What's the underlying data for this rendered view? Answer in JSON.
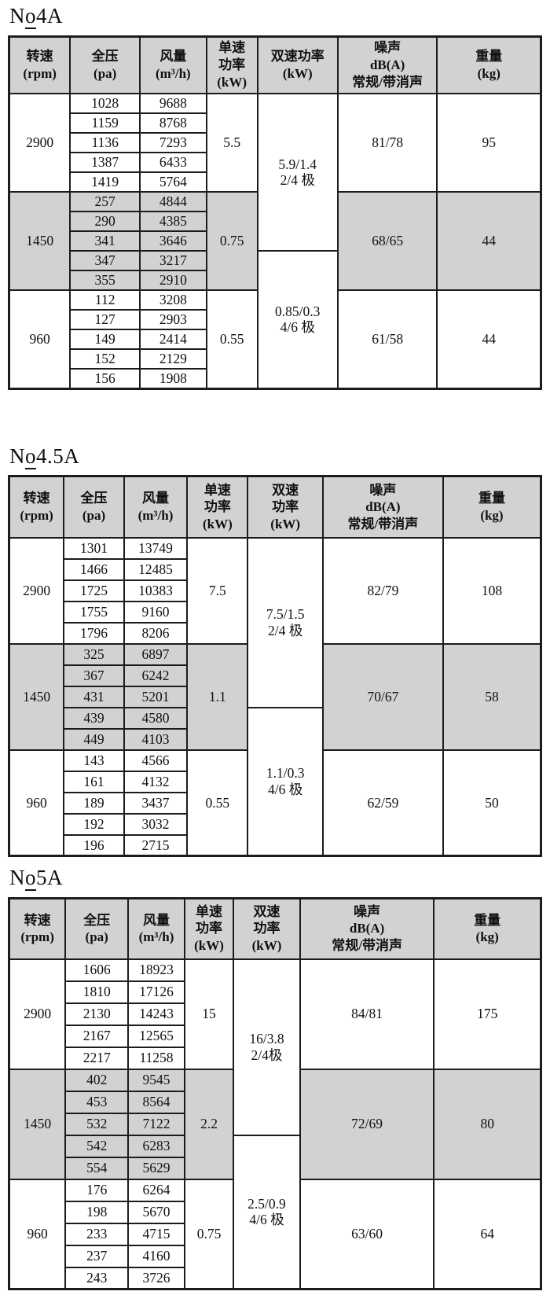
{
  "colors": {
    "page_bg": "#ffffff",
    "header_bg": "#d2d2d2",
    "shaded_row_bg": "#d2d2d2",
    "border": "#1c1c1c",
    "text": "#101010"
  },
  "tables": [
    {
      "id": "no4a",
      "title": {
        "prefix": "N",
        "underlined": "o",
        "rest": "4A"
      },
      "columns": [
        "转速\n(rpm)",
        "全压\n(pa)",
        "风量\n(m³/h)",
        "单速\n功率\n(kW)",
        "双速功率\n(kW)",
        "噪声\ndB(A)\n常规/带消声",
        "重量\n(kg)"
      ],
      "groups": [
        {
          "rpm": "2900",
          "shaded": false,
          "single_power": "5.5",
          "noise": "81/78",
          "weight": "95",
          "rows": [
            [
              "1028",
              "9688"
            ],
            [
              "1159",
              "8768"
            ],
            [
              "1136",
              "7293"
            ],
            [
              "1387",
              "6433"
            ],
            [
              "1419",
              "5764"
            ]
          ]
        },
        {
          "rpm": "1450",
          "shaded": true,
          "single_power": "0.75",
          "noise": "68/65",
          "weight": "44",
          "rows": [
            [
              "257",
              "4844"
            ],
            [
              "290",
              "4385"
            ],
            [
              "341",
              "3646"
            ],
            [
              "347",
              "3217"
            ],
            [
              "355",
              "2910"
            ]
          ]
        },
        {
          "rpm": "960",
          "shaded": false,
          "single_power": "0.55",
          "noise": "61/58",
          "weight": "44",
          "rows": [
            [
              "112",
              "3208"
            ],
            [
              "127",
              "2903"
            ],
            [
              "149",
              "2414"
            ],
            [
              "152",
              "2129"
            ],
            [
              "156",
              "1908"
            ]
          ]
        }
      ],
      "dual_power": [
        {
          "label": "5.9/1.4\n2/4 极",
          "rowspan": 8
        },
        {
          "label": "0.85/0.3\n4/6 极",
          "rowspan": 7
        }
      ]
    },
    {
      "id": "no45a",
      "title": {
        "prefix": "N",
        "underlined": "o",
        "rest": "4.5A"
      },
      "columns": [
        "转速\n(rpm)",
        "全压\n(pa)",
        "风量\n(m³/h)",
        "单速\n功率\n(kW)",
        "双速\n功率\n(kW)",
        "噪声\ndB(A)\n常规/带消声",
        "重量\n(kg)"
      ],
      "groups": [
        {
          "rpm": "2900",
          "shaded": false,
          "single_power": "7.5",
          "noise": "82/79",
          "weight": "108",
          "rows": [
            [
              "1301",
              "13749"
            ],
            [
              "1466",
              "12485"
            ],
            [
              "1725",
              "10383"
            ],
            [
              "1755",
              "9160"
            ],
            [
              "1796",
              "8206"
            ]
          ]
        },
        {
          "rpm": "1450",
          "shaded": true,
          "single_power": "1.1",
          "noise": "70/67",
          "weight": "58",
          "rows": [
            [
              "325",
              "6897"
            ],
            [
              "367",
              "6242"
            ],
            [
              "431",
              "5201"
            ],
            [
              "439",
              "4580"
            ],
            [
              "449",
              "4103"
            ]
          ]
        },
        {
          "rpm": "960",
          "shaded": false,
          "single_power": "0.55",
          "noise": "62/59",
          "weight": "50",
          "rows": [
            [
              "143",
              "4566"
            ],
            [
              "161",
              "4132"
            ],
            [
              "189",
              "3437"
            ],
            [
              "192",
              "3032"
            ],
            [
              "196",
              "2715"
            ]
          ]
        }
      ],
      "dual_power": [
        {
          "label": "7.5/1.5\n2/4 极",
          "rowspan": 8
        },
        {
          "label": "1.1/0.3\n4/6 极",
          "rowspan": 7
        }
      ]
    },
    {
      "id": "no5a",
      "title": {
        "prefix": "N",
        "underlined": "o",
        "rest": "5A"
      },
      "columns": [
        "转速\n(rpm)",
        "全压\n(pa)",
        "风量\n(m³/h)",
        "单速\n功率\n(kW)",
        "双速\n功率\n(kW)",
        "噪声\ndB(A)\n常规/带消声",
        "重量\n(kg)"
      ],
      "groups": [
        {
          "rpm": "2900",
          "shaded": false,
          "single_power": "15",
          "noise": "84/81",
          "weight": "175",
          "rows": [
            [
              "1606",
              "18923"
            ],
            [
              "1810",
              "17126"
            ],
            [
              "2130",
              "14243"
            ],
            [
              "2167",
              "12565"
            ],
            [
              "2217",
              "11258"
            ]
          ]
        },
        {
          "rpm": "1450",
          "shaded": true,
          "single_power": "2.2",
          "noise": "72/69",
          "weight": "80",
          "rows": [
            [
              "402",
              "9545"
            ],
            [
              "453",
              "8564"
            ],
            [
              "532",
              "7122"
            ],
            [
              "542",
              "6283"
            ],
            [
              "554",
              "5629"
            ]
          ]
        },
        {
          "rpm": "960",
          "shaded": false,
          "single_power": "0.75",
          "noise": "63/60",
          "weight": "64",
          "rows": [
            [
              "176",
              "6264"
            ],
            [
              "198",
              "5670"
            ],
            [
              "233",
              "4715"
            ],
            [
              "237",
              "4160"
            ],
            [
              "243",
              "3726"
            ]
          ]
        }
      ],
      "dual_power": [
        {
          "label": "16/3.8\n2/4极",
          "rowspan": 8
        },
        {
          "label": "2.5/0.9\n4/6 极",
          "rowspan": 7
        }
      ]
    }
  ]
}
